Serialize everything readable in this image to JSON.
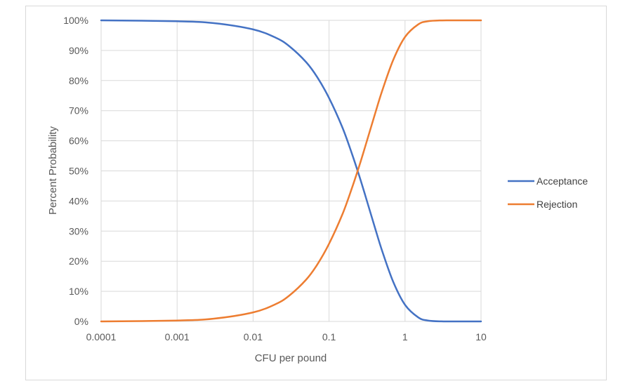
{
  "chart_data": {
    "type": "line",
    "xlabel": "CFU per pound",
    "ylabel": "Percent Probability",
    "x_scale": "log",
    "xlim": [
      0.0001,
      10
    ],
    "ylim": [
      0,
      100
    ],
    "x_ticks": [
      "0.0001",
      "0.001",
      "0.01",
      "0.1",
      "1",
      "10"
    ],
    "y_ticks": [
      "0%",
      "10%",
      "20%",
      "30%",
      "40%",
      "50%",
      "60%",
      "70%",
      "80%",
      "90%",
      "100%"
    ],
    "grid": true,
    "legend_position": "right",
    "x": [
      0.0001,
      0.001,
      0.003,
      0.01,
      0.02,
      0.03,
      0.05,
      0.07,
      0.1,
      0.15,
      0.2,
      0.25,
      0.3,
      0.4,
      0.5,
      0.7,
      1,
      1.5,
      2,
      3,
      5,
      10
    ],
    "series": [
      {
        "name": "Acceptance",
        "color": "#4472c4",
        "values": [
          100,
          99.7,
          99.1,
          97,
          94.2,
          91.4,
          86.1,
          81.1,
          74.2,
          64.4,
          55.7,
          48.3,
          41.8,
          31.3,
          23.4,
          13.1,
          5.5,
          1.3,
          0.3,
          0.02,
          0,
          0
        ]
      },
      {
        "name": "Rejection",
        "color": "#ed7d31",
        "values": [
          0,
          0.3,
          0.9,
          3,
          5.8,
          8.6,
          13.9,
          18.9,
          25.8,
          35.6,
          44.3,
          51.7,
          58.2,
          68.7,
          76.6,
          86.9,
          94.5,
          98.7,
          99.7,
          99.98,
          100,
          100
        ]
      }
    ]
  }
}
